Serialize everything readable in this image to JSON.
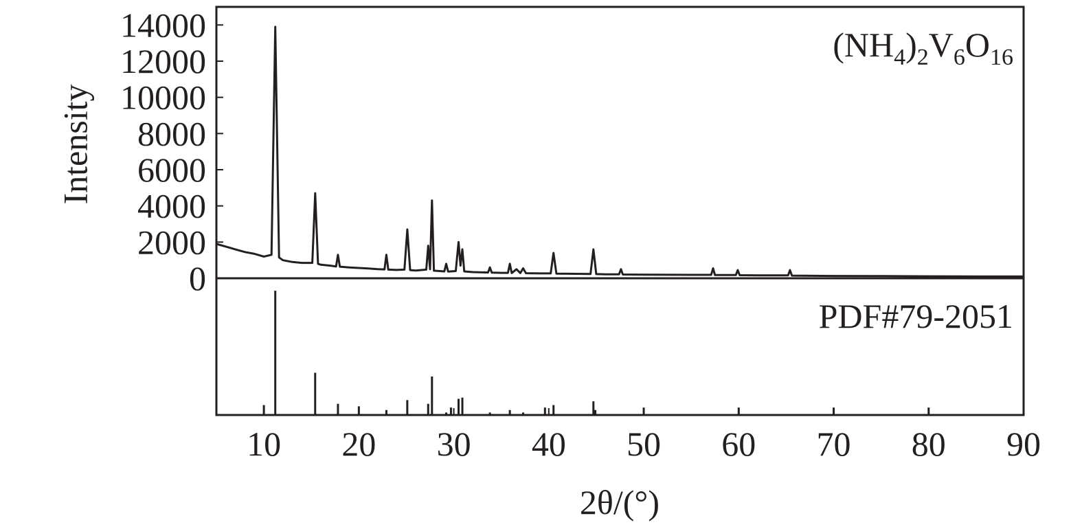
{
  "chart_data": [
    {
      "type": "line",
      "annotation": "(NH4)2V6O16",
      "y_label": "Intensity",
      "color": "#231f20",
      "x": [
        5,
        6,
        7,
        8,
        9,
        10,
        10.8,
        11.2,
        11.6,
        12,
        13,
        14,
        15.1,
        15.4,
        15.7,
        16,
        17,
        17.6,
        17.8,
        18,
        19,
        20,
        21,
        22,
        22.7,
        22.9,
        23.1,
        24,
        24.8,
        25.1,
        25.4,
        26,
        27.1,
        27.3,
        27.5,
        27.7,
        27.9,
        28.5,
        29,
        29.2,
        29.4,
        30.2,
        30.5,
        30.7,
        30.9,
        31.1,
        32,
        33.6,
        33.8,
        34,
        35,
        35.7,
        35.9,
        36.1,
        36.6,
        37,
        37.3,
        37.6,
        39,
        40.2,
        40.5,
        40.8,
        42,
        44.4,
        44.7,
        45,
        46,
        47.4,
        47.6,
        47.8,
        50,
        55,
        57.1,
        57.3,
        57.5,
        59.7,
        59.9,
        60.1,
        62,
        65.2,
        65.4,
        65.6,
        70,
        75,
        80,
        85,
        90
      ],
      "values": [
        1900,
        1750,
        1600,
        1450,
        1350,
        1200,
        1300,
        13900,
        1150,
        1000,
        900,
        850,
        850,
        4700,
        800,
        750,
        700,
        650,
        1300,
        640,
        600,
        570,
        540,
        500,
        490,
        1300,
        480,
        460,
        480,
        2700,
        450,
        430,
        480,
        1800,
        500,
        4300,
        420,
        400,
        380,
        800,
        370,
        400,
        2000,
        700,
        1600,
        380,
        340,
        320,
        600,
        310,
        300,
        300,
        800,
        290,
        500,
        290,
        550,
        280,
        270,
        270,
        1400,
        260,
        250,
        240,
        1600,
        230,
        220,
        220,
        500,
        210,
        200,
        190,
        190,
        550,
        180,
        180,
        450,
        170,
        160,
        160,
        450,
        150,
        130,
        120,
        110,
        100,
        100
      ],
      "xlim": [
        5,
        90
      ],
      "ylim": [
        0,
        15000
      ],
      "yticks": [
        0,
        2000,
        4000,
        6000,
        8000,
        10000,
        12000,
        14000
      ]
    },
    {
      "type": "stem",
      "annotation": "PDF#79-2051",
      "x_label": "2θ/(°)",
      "color": "#231f20",
      "x": [
        10.0,
        11.2,
        15.4,
        17.8,
        20.0,
        22.9,
        25.1,
        27.3,
        27.7,
        29.2,
        29.7,
        30.5,
        30.9,
        33.8,
        35.9,
        37.3,
        39.6,
        40.5,
        44.7,
        44.9,
        50.0,
        60.0,
        70.0,
        80.0
      ],
      "values": [
        8,
        100,
        34,
        9,
        7,
        4,
        12,
        9,
        31,
        2,
        6,
        13,
        14,
        2,
        4,
        2,
        6,
        8,
        11,
        4,
        6,
        6,
        6,
        6
      ],
      "xlim": [
        5,
        90
      ],
      "ylim": [
        0,
        110
      ],
      "xticks": [
        10,
        20,
        30,
        40,
        50,
        60,
        70,
        80,
        90
      ]
    }
  ]
}
